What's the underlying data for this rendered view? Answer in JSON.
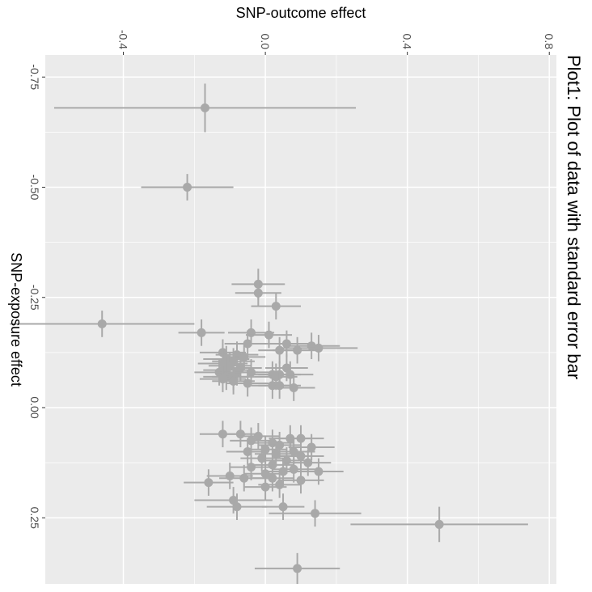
{
  "chart_data": {
    "type": "scatter",
    "orientation": "rotated-90-clockwise",
    "title": "Plot1: Plot of data with standard error bar",
    "xlabel": "SNP-exposure effect",
    "ylabel": "SNP-outcome effect",
    "xlim": [
      -0.8,
      0.4
    ],
    "ylim": [
      -0.62,
      0.82
    ],
    "x_ticks": [
      -0.75,
      -0.5,
      -0.25,
      0.0,
      0.25
    ],
    "x_tick_labels": [
      "-0.75",
      "-0.50",
      "-0.25",
      "0.00",
      "0.25"
    ],
    "y_ticks": [
      -0.4,
      0.0,
      0.4,
      0.8
    ],
    "y_tick_labels": [
      "-0.4",
      "0.0",
      "0.4",
      "0.8"
    ],
    "grid": true,
    "colors": {
      "panel": "#ebebeb",
      "grid": "#ffffff",
      "points": "#a9a9a9",
      "text": "#000000",
      "tick_text": "#4d4d4d"
    },
    "points": [
      {
        "x": -0.68,
        "y": -0.17,
        "xerr": 0.055,
        "yerr": 0.425
      },
      {
        "x": -0.5,
        "y": -0.22,
        "xerr": 0.03,
        "yerr": 0.13
      },
      {
        "x": -0.28,
        "y": -0.02,
        "xerr": 0.035,
        "yerr": 0.075
      },
      {
        "x": -0.26,
        "y": -0.02,
        "xerr": 0.03,
        "yerr": 0.065
      },
      {
        "x": -0.23,
        "y": 0.03,
        "xerr": 0.03,
        "yerr": 0.07
      },
      {
        "x": -0.19,
        "y": -0.46,
        "xerr": 0.03,
        "yerr": 0.26
      },
      {
        "x": -0.17,
        "y": -0.18,
        "xerr": 0.03,
        "yerr": 0.065
      },
      {
        "x": -0.17,
        "y": -0.04,
        "xerr": 0.03,
        "yerr": 0.065
      },
      {
        "x": -0.165,
        "y": 0.01,
        "xerr": 0.03,
        "yerr": 0.065
      },
      {
        "x": -0.145,
        "y": -0.05,
        "xerr": 0.03,
        "yerr": 0.065
      },
      {
        "x": -0.145,
        "y": 0.06,
        "xerr": 0.03,
        "yerr": 0.065
      },
      {
        "x": -0.14,
        "y": 0.13,
        "xerr": 0.03,
        "yerr": 0.08
      },
      {
        "x": -0.135,
        "y": 0.15,
        "xerr": 0.03,
        "yerr": 0.11
      },
      {
        "x": -0.13,
        "y": 0.04,
        "xerr": 0.03,
        "yerr": 0.06
      },
      {
        "x": -0.13,
        "y": 0.09,
        "xerr": 0.03,
        "yerr": 0.07
      },
      {
        "x": -0.125,
        "y": -0.12,
        "xerr": 0.03,
        "yerr": 0.065
      },
      {
        "x": -0.12,
        "y": -0.08,
        "xerr": 0.03,
        "yerr": 0.06
      },
      {
        "x": -0.115,
        "y": -0.06,
        "xerr": 0.03,
        "yerr": 0.06
      },
      {
        "x": -0.11,
        "y": -0.11,
        "xerr": 0.03,
        "yerr": 0.065
      },
      {
        "x": -0.105,
        "y": -0.09,
        "xerr": 0.03,
        "yerr": 0.06
      },
      {
        "x": -0.1,
        "y": -0.12,
        "xerr": 0.03,
        "yerr": 0.07
      },
      {
        "x": -0.095,
        "y": -0.1,
        "xerr": 0.03,
        "yerr": 0.06
      },
      {
        "x": -0.09,
        "y": -0.07,
        "xerr": 0.03,
        "yerr": 0.06
      },
      {
        "x": -0.09,
        "y": 0.06,
        "xerr": 0.03,
        "yerr": 0.06
      },
      {
        "x": -0.085,
        "y": -0.11,
        "xerr": 0.03,
        "yerr": 0.065
      },
      {
        "x": -0.08,
        "y": -0.13,
        "xerr": 0.03,
        "yerr": 0.07
      },
      {
        "x": -0.08,
        "y": -0.08,
        "xerr": 0.03,
        "yerr": 0.06
      },
      {
        "x": -0.08,
        "y": -0.04,
        "xerr": 0.03,
        "yerr": 0.06
      },
      {
        "x": -0.075,
        "y": 0.02,
        "xerr": 0.03,
        "yerr": 0.06
      },
      {
        "x": -0.075,
        "y": 0.04,
        "xerr": 0.03,
        "yerr": 0.06
      },
      {
        "x": -0.075,
        "y": 0.07,
        "xerr": 0.03,
        "yerr": 0.065
      },
      {
        "x": -0.07,
        "y": -0.11,
        "xerr": 0.03,
        "yerr": 0.065
      },
      {
        "x": -0.07,
        "y": -0.09,
        "xerr": 0.03,
        "yerr": 0.06
      },
      {
        "x": -0.07,
        "y": 0.03,
        "xerr": 0.03,
        "yerr": 0.06
      },
      {
        "x": -0.065,
        "y": -0.12,
        "xerr": 0.03,
        "yerr": 0.065
      },
      {
        "x": -0.06,
        "y": -0.09,
        "xerr": 0.03,
        "yerr": 0.06
      },
      {
        "x": -0.055,
        "y": -0.05,
        "xerr": 0.03,
        "yerr": 0.06
      },
      {
        "x": -0.05,
        "y": 0.02,
        "xerr": 0.03,
        "yerr": 0.06
      },
      {
        "x": -0.05,
        "y": 0.04,
        "xerr": 0.03,
        "yerr": 0.06
      },
      {
        "x": -0.045,
        "y": 0.08,
        "xerr": 0.03,
        "yerr": 0.06
      },
      {
        "x": 0.06,
        "y": -0.12,
        "xerr": 0.03,
        "yerr": 0.065
      },
      {
        "x": 0.06,
        "y": -0.07,
        "xerr": 0.03,
        "yerr": 0.06
      },
      {
        "x": 0.065,
        "y": -0.02,
        "xerr": 0.03,
        "yerr": 0.06
      },
      {
        "x": 0.07,
        "y": 0.07,
        "xerr": 0.03,
        "yerr": 0.06
      },
      {
        "x": 0.07,
        "y": 0.1,
        "xerr": 0.03,
        "yerr": 0.065
      },
      {
        "x": 0.075,
        "y": -0.04,
        "xerr": 0.03,
        "yerr": 0.06
      },
      {
        "x": 0.08,
        "y": 0.02,
        "xerr": 0.03,
        "yerr": 0.06
      },
      {
        "x": 0.085,
        "y": 0.04,
        "xerr": 0.03,
        "yerr": 0.06
      },
      {
        "x": 0.09,
        "y": 0.13,
        "xerr": 0.03,
        "yerr": 0.065
      },
      {
        "x": 0.095,
        "y": 0.0,
        "xerr": 0.03,
        "yerr": 0.06
      },
      {
        "x": 0.1,
        "y": -0.05,
        "xerr": 0.03,
        "yerr": 0.06
      },
      {
        "x": 0.1,
        "y": 0.08,
        "xerr": 0.03,
        "yerr": 0.06
      },
      {
        "x": 0.105,
        "y": 0.03,
        "xerr": 0.03,
        "yerr": 0.06
      },
      {
        "x": 0.11,
        "y": 0.1,
        "xerr": 0.03,
        "yerr": 0.065
      },
      {
        "x": 0.115,
        "y": -0.01,
        "xerr": 0.03,
        "yerr": 0.06
      },
      {
        "x": 0.12,
        "y": 0.06,
        "xerr": 0.03,
        "yerr": 0.06
      },
      {
        "x": 0.125,
        "y": 0.12,
        "xerr": 0.03,
        "yerr": 0.065
      },
      {
        "x": 0.13,
        "y": 0.02,
        "xerr": 0.03,
        "yerr": 0.06
      },
      {
        "x": 0.135,
        "y": -0.04,
        "xerr": 0.03,
        "yerr": 0.06
      },
      {
        "x": 0.14,
        "y": 0.08,
        "xerr": 0.03,
        "yerr": 0.06
      },
      {
        "x": 0.145,
        "y": 0.05,
        "xerr": 0.03,
        "yerr": 0.06
      },
      {
        "x": 0.145,
        "y": 0.15,
        "xerr": 0.03,
        "yerr": 0.07
      },
      {
        "x": 0.15,
        "y": 0.0,
        "xerr": 0.03,
        "yerr": 0.06
      },
      {
        "x": 0.155,
        "y": -0.1,
        "xerr": 0.03,
        "yerr": 0.065
      },
      {
        "x": 0.16,
        "y": -0.06,
        "xerr": 0.03,
        "yerr": 0.07
      },
      {
        "x": 0.16,
        "y": 0.02,
        "xerr": 0.03,
        "yerr": 0.06
      },
      {
        "x": 0.165,
        "y": 0.1,
        "xerr": 0.03,
        "yerr": 0.065
      },
      {
        "x": 0.17,
        "y": -0.16,
        "xerr": 0.03,
        "yerr": 0.07
      },
      {
        "x": 0.175,
        "y": 0.04,
        "xerr": 0.03,
        "yerr": 0.06
      },
      {
        "x": 0.18,
        "y": 0.0,
        "xerr": 0.03,
        "yerr": 0.06
      },
      {
        "x": 0.21,
        "y": -0.09,
        "xerr": 0.03,
        "yerr": 0.11
      },
      {
        "x": 0.225,
        "y": -0.08,
        "xerr": 0.03,
        "yerr": 0.085
      },
      {
        "x": 0.225,
        "y": 0.05,
        "xerr": 0.03,
        "yerr": 0.06
      },
      {
        "x": 0.24,
        "y": 0.14,
        "xerr": 0.03,
        "yerr": 0.13
      },
      {
        "x": 0.265,
        "y": 0.49,
        "xerr": 0.04,
        "yerr": 0.25
      },
      {
        "x": 0.365,
        "y": 0.09,
        "xerr": 0.035,
        "yerr": 0.12
      }
    ]
  }
}
